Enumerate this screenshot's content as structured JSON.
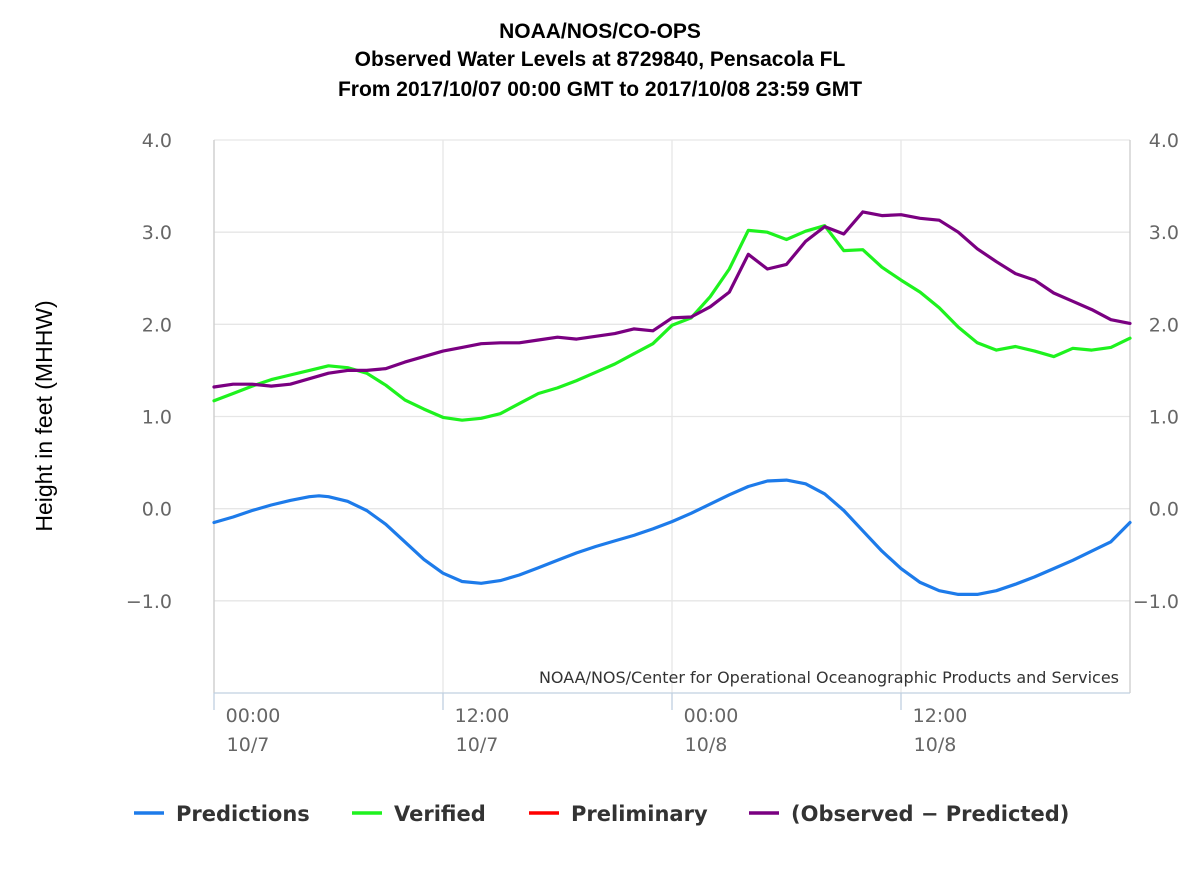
{
  "chart_data": {
    "type": "line",
    "title": [
      "NOAA/NOS/CO-OPS",
      "Observed Water Levels at 8729840, Pensacola FL",
      "From 2017/10/07 00:00 GMT to 2017/10/08 23:59 GMT"
    ],
    "ylabel": "Height in feet (MHHW)",
    "credit": "NOAA/NOS/Center for Operational Oceanographic Products and Services",
    "ylim": [
      -2.0,
      4.0
    ],
    "xlim_hours": [
      0,
      48
    ],
    "grid": true,
    "legend_position": "bottom",
    "y_ticks": [
      {
        "value": 4.0,
        "label": "4.0"
      },
      {
        "value": 3.0,
        "label": "3.0"
      },
      {
        "value": 2.0,
        "label": "2.0"
      },
      {
        "value": 1.0,
        "label": "1.0"
      },
      {
        "value": 0.0,
        "label": "0.0"
      },
      {
        "value": -1.0,
        "label": "−1.0"
      }
    ],
    "x_ticks": [
      {
        "hour": 0,
        "time": "00:00",
        "date": "10/7"
      },
      {
        "hour": 12,
        "time": "12:00",
        "date": "10/7"
      },
      {
        "hour": 24,
        "time": "00:00",
        "date": "10/8"
      },
      {
        "hour": 36,
        "time": "12:00",
        "date": "10/8"
      }
    ],
    "series": [
      {
        "name": "Predictions",
        "color": "#1d7bea",
        "points": [
          [
            0,
            -0.15
          ],
          [
            1,
            -0.09
          ],
          [
            2,
            -0.02
          ],
          [
            3,
            0.04
          ],
          [
            4,
            0.09
          ],
          [
            5,
            0.13
          ],
          [
            5.5,
            0.14
          ],
          [
            6,
            0.13
          ],
          [
            7,
            0.08
          ],
          [
            8,
            -0.02
          ],
          [
            9,
            -0.17
          ],
          [
            10,
            -0.36
          ],
          [
            11,
            -0.55
          ],
          [
            12,
            -0.7
          ],
          [
            13,
            -0.79
          ],
          [
            14,
            -0.81
          ],
          [
            15,
            -0.78
          ],
          [
            16,
            -0.72
          ],
          [
            17,
            -0.64
          ],
          [
            18,
            -0.56
          ],
          [
            19,
            -0.48
          ],
          [
            20,
            -0.41
          ],
          [
            21,
            -0.35
          ],
          [
            22,
            -0.29
          ],
          [
            23,
            -0.22
          ],
          [
            24,
            -0.14
          ],
          [
            25,
            -0.05
          ],
          [
            26,
            0.05
          ],
          [
            27,
            0.15
          ],
          [
            28,
            0.24
          ],
          [
            29,
            0.3
          ],
          [
            30,
            0.31
          ],
          [
            31,
            0.27
          ],
          [
            32,
            0.16
          ],
          [
            33,
            -0.02
          ],
          [
            34,
            -0.24
          ],
          [
            35,
            -0.46
          ],
          [
            36,
            -0.65
          ],
          [
            37,
            -0.8
          ],
          [
            38,
            -0.89
          ],
          [
            39,
            -0.93
          ],
          [
            40,
            -0.93
          ],
          [
            41,
            -0.89
          ],
          [
            42,
            -0.82
          ],
          [
            43,
            -0.74
          ],
          [
            44,
            -0.65
          ],
          [
            45,
            -0.56
          ],
          [
            46,
            -0.46
          ],
          [
            47,
            -0.36
          ],
          [
            48,
            -0.15
          ]
        ]
      },
      {
        "name": "Verified",
        "color": "#1ef21e",
        "points": [
          [
            0,
            1.17
          ],
          [
            1,
            1.25
          ],
          [
            2,
            1.33
          ],
          [
            3,
            1.4
          ],
          [
            4,
            1.45
          ],
          [
            5,
            1.5
          ],
          [
            6,
            1.55
          ],
          [
            7,
            1.53
          ],
          [
            8,
            1.47
          ],
          [
            9,
            1.34
          ],
          [
            10,
            1.18
          ],
          [
            11,
            1.08
          ],
          [
            12,
            0.99
          ],
          [
            13,
            0.96
          ],
          [
            14,
            0.98
          ],
          [
            15,
            1.03
          ],
          [
            16,
            1.14
          ],
          [
            17,
            1.25
          ],
          [
            18,
            1.31
          ],
          [
            19,
            1.39
          ],
          [
            20,
            1.48
          ],
          [
            21,
            1.57
          ],
          [
            22,
            1.68
          ],
          [
            23,
            1.79
          ],
          [
            24,
            1.99
          ],
          [
            25,
            2.07
          ],
          [
            26,
            2.3
          ],
          [
            27,
            2.6
          ],
          [
            28,
            3.02
          ],
          [
            29,
            3.0
          ],
          [
            30,
            2.92
          ],
          [
            31,
            3.01
          ],
          [
            32,
            3.07
          ],
          [
            33,
            2.8
          ],
          [
            34,
            2.81
          ],
          [
            35,
            2.62
          ],
          [
            36,
            2.48
          ],
          [
            37,
            2.35
          ],
          [
            38,
            2.18
          ],
          [
            39,
            1.97
          ],
          [
            40,
            1.8
          ],
          [
            41,
            1.72
          ],
          [
            42,
            1.76
          ],
          [
            43,
            1.71
          ],
          [
            44,
            1.65
          ],
          [
            45,
            1.74
          ],
          [
            46,
            1.72
          ],
          [
            47,
            1.75
          ],
          [
            48,
            1.85
          ]
        ]
      },
      {
        "name": "Preliminary",
        "color": "#ff0000",
        "points": []
      },
      {
        "name": "(Observed − Predicted)",
        "color": "#7a0081",
        "points": [
          [
            0,
            1.32
          ],
          [
            1,
            1.35
          ],
          [
            2,
            1.35
          ],
          [
            3,
            1.33
          ],
          [
            4,
            1.35
          ],
          [
            5,
            1.41
          ],
          [
            6,
            1.47
          ],
          [
            7,
            1.5
          ],
          [
            8,
            1.5
          ],
          [
            9,
            1.52
          ],
          [
            10,
            1.59
          ],
          [
            11,
            1.65
          ],
          [
            12,
            1.71
          ],
          [
            13,
            1.75
          ],
          [
            14,
            1.79
          ],
          [
            15,
            1.8
          ],
          [
            16,
            1.8
          ],
          [
            17,
            1.83
          ],
          [
            18,
            1.86
          ],
          [
            19,
            1.84
          ],
          [
            20,
            1.87
          ],
          [
            21,
            1.9
          ],
          [
            22,
            1.95
          ],
          [
            23,
            1.93
          ],
          [
            24,
            2.07
          ],
          [
            25,
            2.08
          ],
          [
            26,
            2.19
          ],
          [
            27,
            2.35
          ],
          [
            28,
            2.76
          ],
          [
            29,
            2.6
          ],
          [
            30,
            2.65
          ],
          [
            31,
            2.9
          ],
          [
            32,
            3.06
          ],
          [
            33,
            2.98
          ],
          [
            34,
            3.22
          ],
          [
            35,
            3.18
          ],
          [
            36,
            3.19
          ],
          [
            37,
            3.15
          ],
          [
            38,
            3.13
          ],
          [
            39,
            3.0
          ],
          [
            40,
            2.82
          ],
          [
            41,
            2.68
          ],
          [
            42,
            2.55
          ],
          [
            43,
            2.48
          ],
          [
            44,
            2.34
          ],
          [
            45,
            2.25
          ],
          [
            46,
            2.16
          ],
          [
            47,
            2.05
          ],
          [
            48,
            2.01
          ]
        ]
      }
    ]
  }
}
